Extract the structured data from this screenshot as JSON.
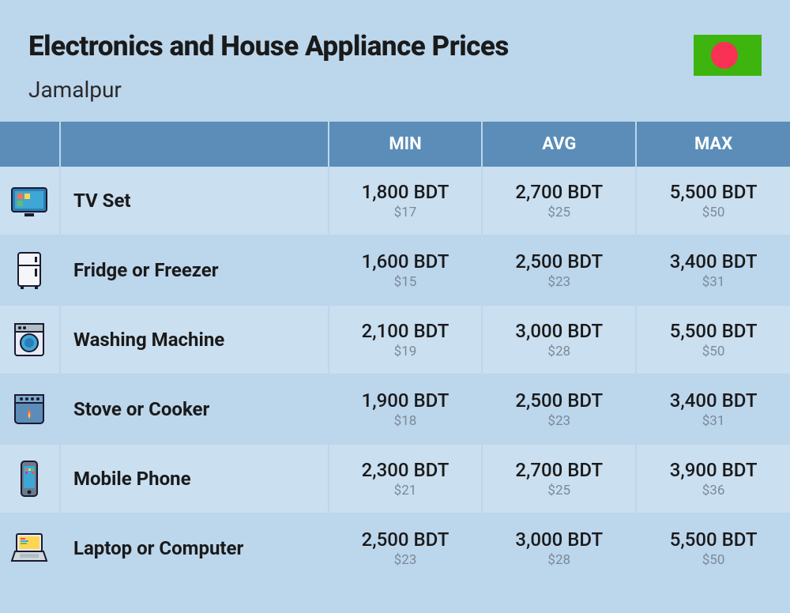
{
  "header": {
    "title": "Electronics and House Appliance Prices",
    "location": "Jamalpur"
  },
  "flag": {
    "bg_color": "#3db50e",
    "circle_color": "#f93154"
  },
  "table": {
    "columns": {
      "min": "MIN",
      "avg": "AVG",
      "max": "MAX"
    },
    "header_bg": "#5b8db8",
    "header_text_color": "#ffffff",
    "row_odd_bg": "#cadff0",
    "row_even_bg": "#bcd6ec",
    "primary_text_color": "#1a1a1a",
    "secondary_text_color": "#7a8a99",
    "rows": [
      {
        "icon": "tv-icon",
        "name": "TV Set",
        "min_bdt": "1,800 BDT",
        "min_usd": "$17",
        "avg_bdt": "2,700 BDT",
        "avg_usd": "$25",
        "max_bdt": "5,500 BDT",
        "max_usd": "$50"
      },
      {
        "icon": "fridge-icon",
        "name": "Fridge or Freezer",
        "min_bdt": "1,600 BDT",
        "min_usd": "$15",
        "avg_bdt": "2,500 BDT",
        "avg_usd": "$23",
        "max_bdt": "3,400 BDT",
        "max_usd": "$31"
      },
      {
        "icon": "washer-icon",
        "name": "Washing Machine",
        "min_bdt": "2,100 BDT",
        "min_usd": "$19",
        "avg_bdt": "3,000 BDT",
        "avg_usd": "$28",
        "max_bdt": "5,500 BDT",
        "max_usd": "$50"
      },
      {
        "icon": "stove-icon",
        "name": "Stove or Cooker",
        "min_bdt": "1,900 BDT",
        "min_usd": "$18",
        "avg_bdt": "2,500 BDT",
        "avg_usd": "$23",
        "max_bdt": "3,400 BDT",
        "max_usd": "$31"
      },
      {
        "icon": "phone-icon",
        "name": "Mobile Phone",
        "min_bdt": "2,300 BDT",
        "min_usd": "$21",
        "avg_bdt": "2,700 BDT",
        "avg_usd": "$25",
        "max_bdt": "3,900 BDT",
        "max_usd": "$36"
      },
      {
        "icon": "laptop-icon",
        "name": "Laptop or Computer",
        "min_bdt": "2,500 BDT",
        "min_usd": "$23",
        "avg_bdt": "3,000 BDT",
        "avg_usd": "$28",
        "max_bdt": "5,500 BDT",
        "max_usd": "$50"
      }
    ]
  }
}
